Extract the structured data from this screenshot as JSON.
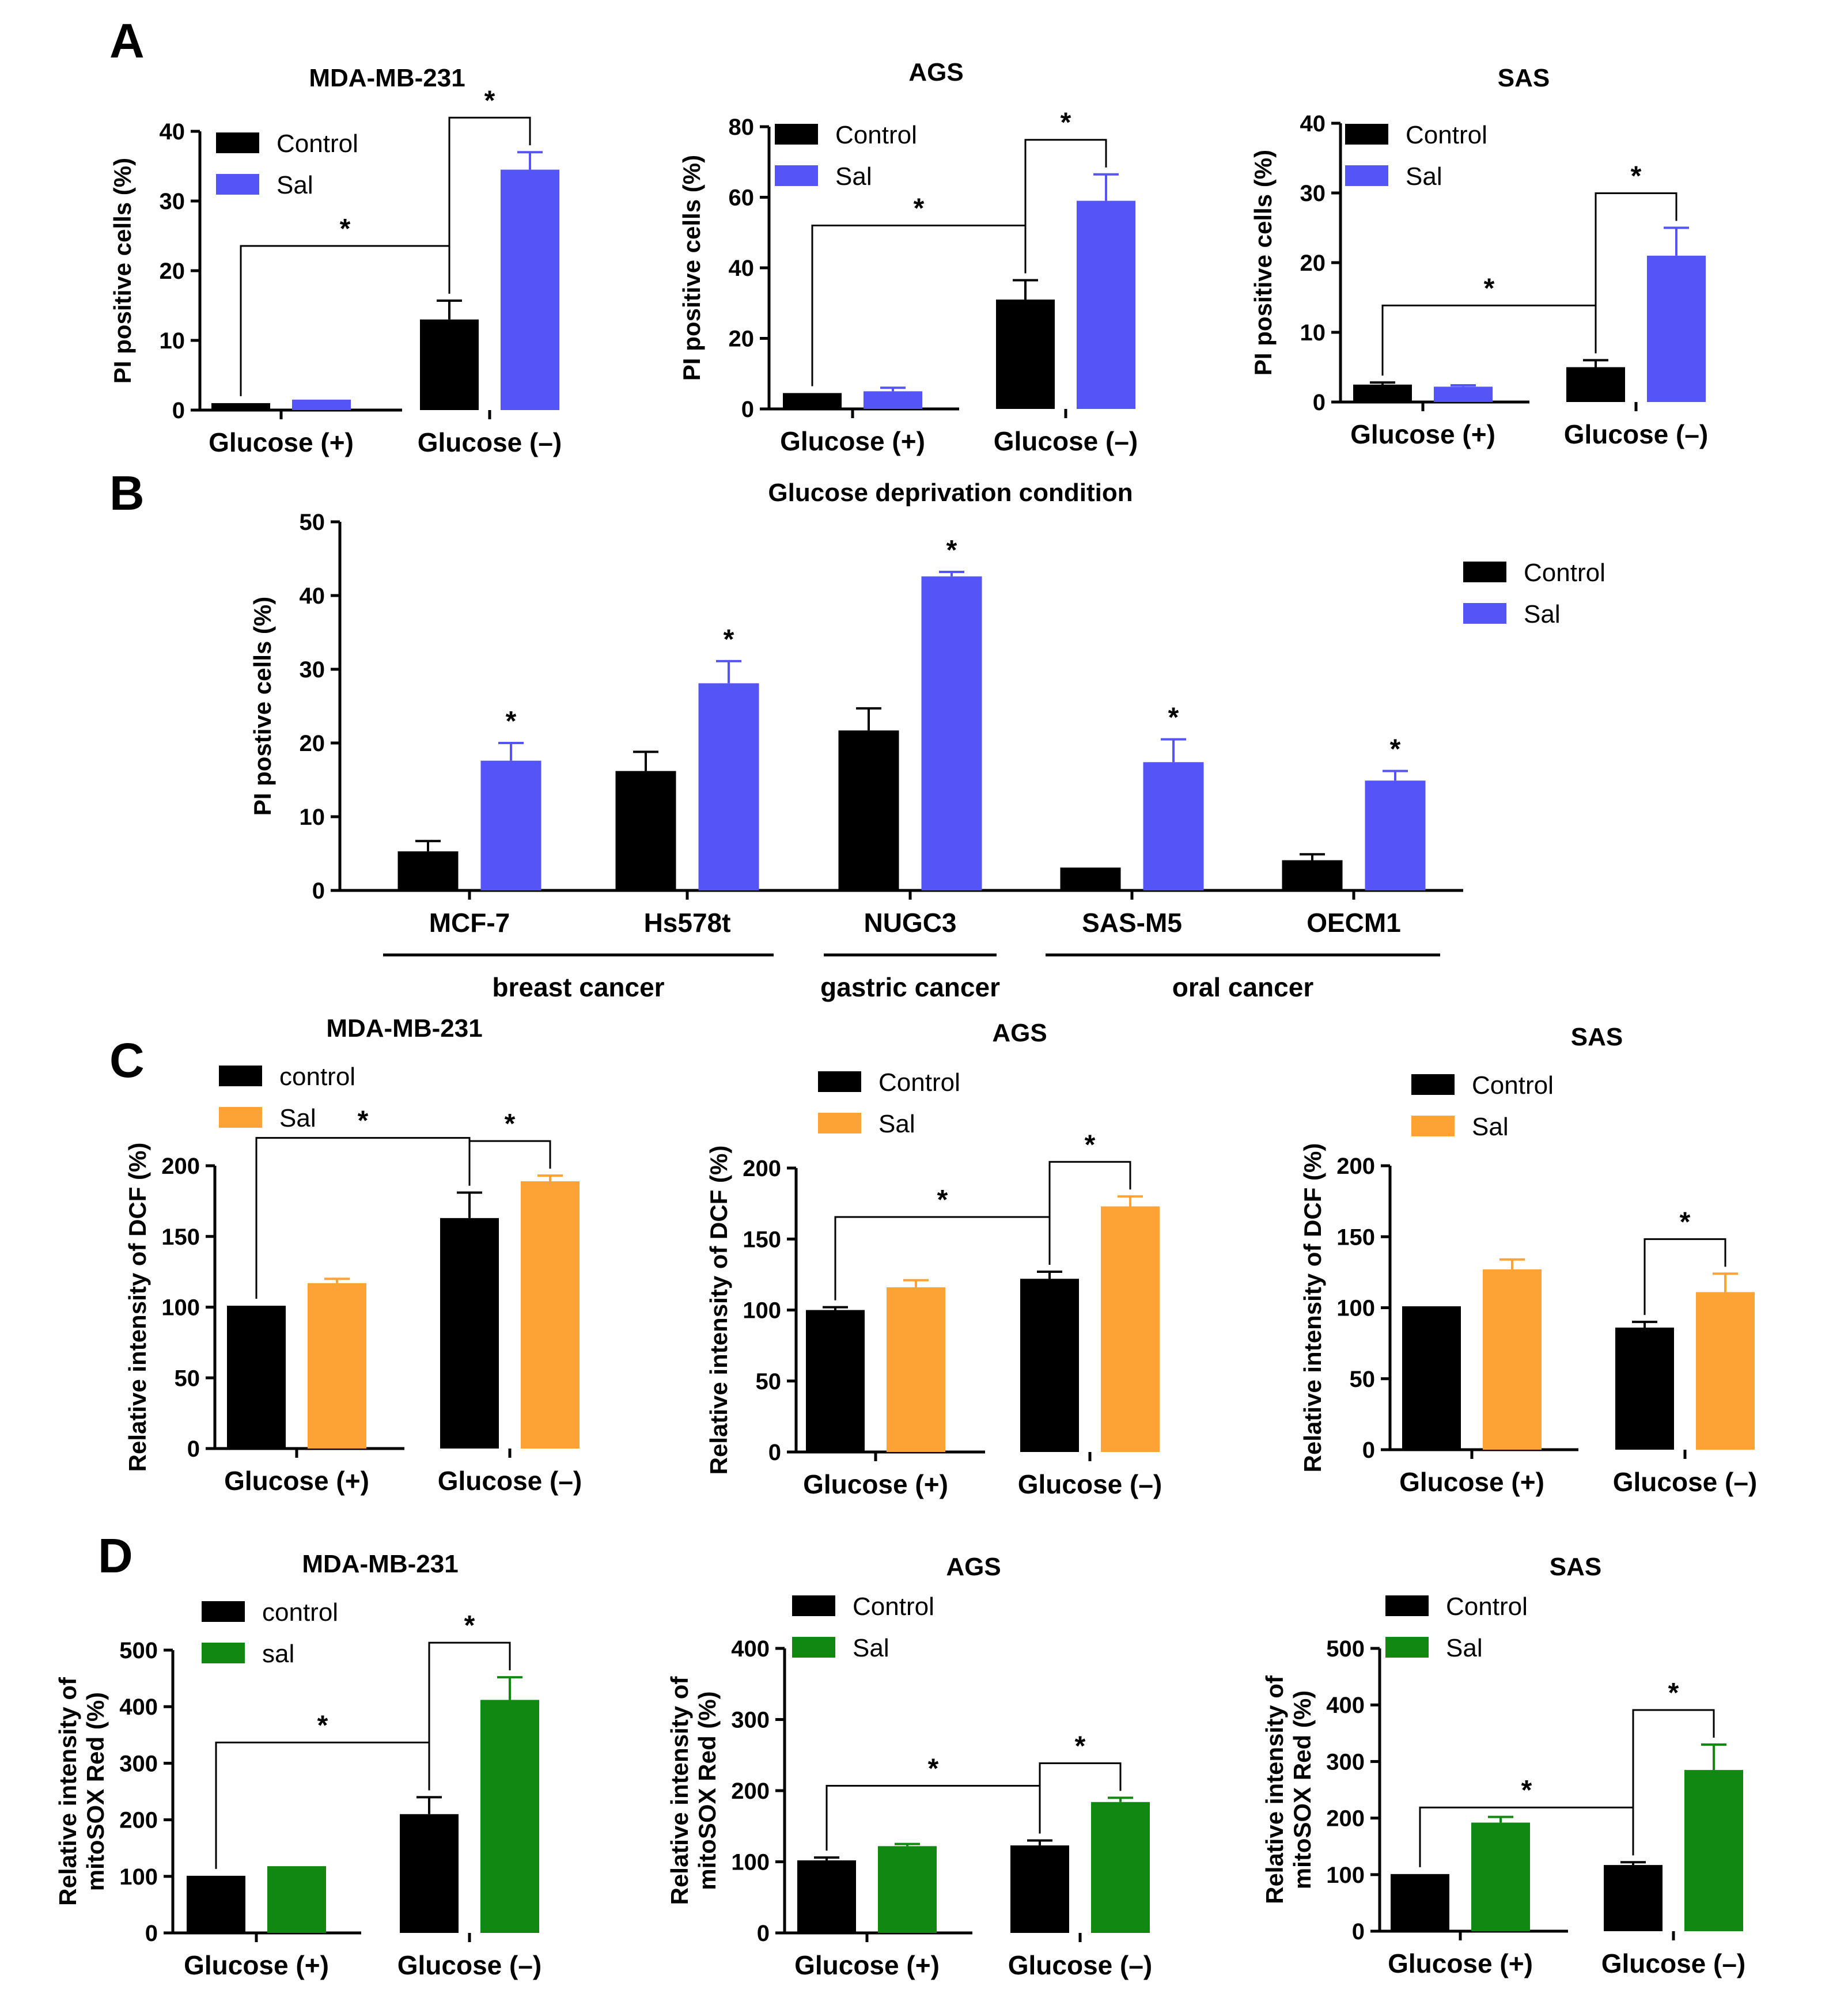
{
  "figure": {
    "panel_letters": [
      "A",
      "B",
      "C",
      "D"
    ]
  },
  "colors": {
    "control": "#000000",
    "sal_blue": "#5454f7",
    "sal_orange": "#fda335",
    "sal_green": "#118811"
  },
  "chart_data": [
    {
      "id": "A1",
      "type": "bar",
      "title": "MDA-MB-231",
      "categories": [
        "Glucose (+)",
        "Glucose (–)"
      ],
      "series": [
        {
          "name": "Control",
          "values": [
            1,
            13
          ],
          "errors": [
            0,
            2.7
          ]
        },
        {
          "name": "Sal",
          "values": [
            1.5,
            34.5
          ],
          "errors": [
            0,
            2.5
          ]
        }
      ],
      "ylabel": "PI positive cells (%)",
      "ylim": [
        0,
        40
      ],
      "yticks": [
        0,
        10,
        20,
        30,
        40
      ],
      "sal_color": "#5454f7",
      "legend_position": "top-left",
      "significance": [
        {
          "from": [
            0,
            0
          ],
          "to": [
            1,
            0
          ],
          "label": "*"
        },
        {
          "from": [
            1,
            0
          ],
          "to": [
            1,
            1
          ],
          "label": "*"
        }
      ]
    },
    {
      "id": "A2",
      "type": "bar",
      "title": "AGS",
      "categories": [
        "Glucose (+)",
        "Glucose (–)"
      ],
      "series": [
        {
          "name": "Control",
          "values": [
            4.5,
            31
          ],
          "errors": [
            0,
            5.5
          ]
        },
        {
          "name": "Sal",
          "values": [
            5,
            59
          ],
          "errors": [
            1,
            7.5
          ]
        }
      ],
      "ylabel": "PI positive cells (%)",
      "ylim": [
        0,
        80
      ],
      "yticks": [
        0,
        20,
        40,
        60,
        80
      ],
      "sal_color": "#5454f7",
      "legend_position": "top-left",
      "significance": [
        {
          "from": [
            0,
            0
          ],
          "to": [
            1,
            0
          ],
          "label": "*"
        },
        {
          "from": [
            1,
            0
          ],
          "to": [
            1,
            1
          ],
          "label": "*"
        }
      ]
    },
    {
      "id": "A3",
      "type": "bar",
      "title": "SAS",
      "categories": [
        "Glucose (+)",
        "Glucose (–)"
      ],
      "series": [
        {
          "name": "Control",
          "values": [
            2.5,
            5
          ],
          "errors": [
            0.3,
            1
          ]
        },
        {
          "name": "Sal",
          "values": [
            2.2,
            21
          ],
          "errors": [
            0.2,
            4
          ]
        }
      ],
      "ylabel": "PI positive cells (%)",
      "ylim": [
        0,
        40
      ],
      "yticks": [
        0,
        10,
        20,
        30,
        40
      ],
      "sal_color": "#5454f7",
      "legend_position": "top-left",
      "significance": [
        {
          "from": [
            0,
            0
          ],
          "to": [
            1,
            0
          ],
          "label": "*"
        },
        {
          "from": [
            1,
            0
          ],
          "to": [
            1,
            1
          ],
          "label": "*"
        }
      ]
    },
    {
      "id": "B",
      "type": "bar",
      "title": "Glucose deprivation condition",
      "categories": [
        "MCF-7",
        "Hs578t",
        "NUGC3",
        "SAS-M5",
        "OECM1"
      ],
      "series": [
        {
          "name": "Control",
          "values": [
            5.3,
            16.2,
            21.7,
            3.1,
            4.1
          ],
          "errors": [
            1.4,
            2.6,
            3,
            0,
            0.8
          ]
        },
        {
          "name": "Sal",
          "values": [
            17.6,
            28.1,
            42.6,
            17.4,
            14.9
          ],
          "errors": [
            2.4,
            3,
            0.6,
            3.1,
            1.3
          ]
        }
      ],
      "ylabel": "PI postive cells (%)",
      "ylim": [
        0,
        50
      ],
      "yticks": [
        0,
        10,
        20,
        30,
        40,
        50
      ],
      "sal_color": "#5454f7",
      "legend_position": "top-right",
      "sal_stars": [
        "*",
        "*",
        "*",
        "*",
        "*"
      ],
      "groups": [
        {
          "label": "breast cancer",
          "from": 0,
          "to": 1
        },
        {
          "label": "gastric cancer",
          "from": 2,
          "to": 2
        },
        {
          "label": "oral cancer",
          "from": 3,
          "to": 4
        }
      ]
    },
    {
      "id": "C1",
      "type": "bar",
      "title": "MDA-MB-231",
      "categories": [
        "Glucose (+)",
        "Glucose (–)"
      ],
      "series": [
        {
          "name": "control",
          "values": [
            101,
            163
          ],
          "errors": [
            0,
            18
          ]
        },
        {
          "name": "Sal",
          "values": [
            117,
            189
          ],
          "errors": [
            3,
            4
          ]
        }
      ],
      "ylabel": "Relative intensity of  DCF (%)",
      "ylim": [
        0,
        200
      ],
      "yticks": [
        0,
        50,
        100,
        150,
        200
      ],
      "sal_color": "#fda335",
      "legend_position": "top-left",
      "significance": [
        {
          "from": [
            0,
            0
          ],
          "to": [
            1,
            0
          ],
          "label": "*"
        },
        {
          "from": [
            1,
            0
          ],
          "to": [
            1,
            1
          ],
          "label": "*"
        }
      ]
    },
    {
      "id": "C2",
      "type": "bar",
      "title": "AGS",
      "categories": [
        "Glucose (+)",
        "Glucose (–)"
      ],
      "series": [
        {
          "name": "Control",
          "values": [
            100,
            122
          ],
          "errors": [
            2,
            5
          ]
        },
        {
          "name": "Sal",
          "values": [
            116,
            173
          ],
          "errors": [
            5,
            7
          ]
        }
      ],
      "ylabel": "Relative intensity of  DCF (%)",
      "ylim": [
        0,
        200
      ],
      "yticks": [
        0,
        50,
        100,
        150,
        200
      ],
      "sal_color": "#fda335",
      "legend_position": "top-left",
      "significance": [
        {
          "from": [
            0,
            0
          ],
          "to": [
            1,
            0
          ],
          "label": "*"
        },
        {
          "from": [
            1,
            0
          ],
          "to": [
            1,
            1
          ],
          "label": "*"
        }
      ]
    },
    {
      "id": "C3",
      "type": "bar",
      "title": "SAS",
      "categories": [
        "Glucose (+)",
        "Glucose (–)"
      ],
      "series": [
        {
          "name": "Control",
          "values": [
            101,
            86
          ],
          "errors": [
            0,
            4
          ]
        },
        {
          "name": "Sal",
          "values": [
            127,
            111
          ],
          "errors": [
            7,
            13
          ]
        }
      ],
      "ylabel": "Relative intensity of  DCF (%)",
      "ylim": [
        0,
        200
      ],
      "yticks": [
        0,
        50,
        100,
        150,
        200
      ],
      "sal_color": "#fda335",
      "legend_position": "top-left",
      "significance": [
        {
          "from": [
            1,
            0
          ],
          "to": [
            1,
            1
          ],
          "label": "*"
        }
      ]
    },
    {
      "id": "D1",
      "type": "bar",
      "title": "MDA-MB-231",
      "categories": [
        "Glucose (+)",
        "Glucose (–)"
      ],
      "series": [
        {
          "name": "control",
          "values": [
            101,
            210
          ],
          "errors": [
            0,
            30
          ]
        },
        {
          "name": "sal",
          "values": [
            118,
            412
          ],
          "errors": [
            0,
            40
          ]
        }
      ],
      "ylabel": "Relative intensity of mitoSOX Red (%)",
      "ylabel_lines": [
        "Relative intensity of",
        "mitoSOX Red (%)"
      ],
      "ylim": [
        0,
        500
      ],
      "yticks": [
        0,
        100,
        200,
        300,
        400,
        500
      ],
      "sal_color": "#118811",
      "legend_position": "top-left",
      "significance": [
        {
          "from": [
            0,
            0
          ],
          "to": [
            1,
            0
          ],
          "label": "*"
        },
        {
          "from": [
            1,
            0
          ],
          "to": [
            1,
            1
          ],
          "label": "*"
        }
      ]
    },
    {
      "id": "D2",
      "type": "bar",
      "title": "AGS",
      "categories": [
        "Glucose (+)",
        "Glucose (–)"
      ],
      "series": [
        {
          "name": "Control",
          "values": [
            102,
            123
          ],
          "errors": [
            4,
            7
          ]
        },
        {
          "name": "Sal",
          "values": [
            122,
            184
          ],
          "errors": [
            3,
            6
          ]
        }
      ],
      "ylabel": "Relative intensity of mitoSOX Red (%)",
      "ylabel_lines": [
        "Relative intensity of",
        "mitoSOX Red (%)"
      ],
      "ylim": [
        0,
        400
      ],
      "yticks": [
        0,
        100,
        200,
        300,
        400
      ],
      "sal_color": "#118811",
      "legend_position": "top-left",
      "significance": [
        {
          "from": [
            0,
            0
          ],
          "to": [
            1,
            0
          ],
          "label": "*"
        },
        {
          "from": [
            1,
            0
          ],
          "to": [
            1,
            1
          ],
          "label": "*"
        }
      ]
    },
    {
      "id": "D3",
      "type": "bar",
      "title": "SAS",
      "categories": [
        "Glucose (+)",
        "Glucose (–)"
      ],
      "series": [
        {
          "name": "Control",
          "values": [
            101,
            117
          ],
          "errors": [
            0,
            5
          ]
        },
        {
          "name": "Sal",
          "values": [
            192,
            285
          ],
          "errors": [
            10,
            45
          ]
        }
      ],
      "ylabel": "Relative intensity of mitoSOX Red (%)",
      "ylabel_lines": [
        "Relative intensity of",
        "mitoSOX Red (%)"
      ],
      "ylim": [
        0,
        500
      ],
      "yticks": [
        0,
        100,
        200,
        300,
        400,
        500
      ],
      "sal_color": "#118811",
      "legend_position": "top-left",
      "significance": [
        {
          "from": [
            0,
            0
          ],
          "to": [
            1,
            0
          ],
          "label": "*"
        },
        {
          "from": [
            1,
            0
          ],
          "to": [
            1,
            1
          ],
          "label": "*"
        }
      ]
    }
  ]
}
